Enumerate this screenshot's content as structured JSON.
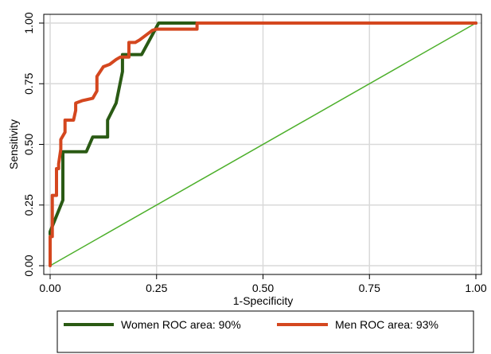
{
  "chart_data": {
    "type": "line",
    "xlabel": "1-Specificity",
    "ylabel": "Sensitivity",
    "xlim": [
      0,
      1
    ],
    "ylim": [
      0,
      1
    ],
    "x_ticks": [
      "0.00",
      "0.25",
      "0.50",
      "0.75",
      "1.00"
    ],
    "y_ticks": [
      "0.00",
      "0.25",
      "0.50",
      "0.75",
      "1.00"
    ],
    "grid": true,
    "legend_position": "bottom",
    "series": [
      {
        "name": "Women ROC area: 90%",
        "color": "#2a5a14",
        "x": [
          0,
          0,
          0.03,
          0.03,
          0.085,
          0.1,
          0.135,
          0.135,
          0.155,
          0.17,
          0.17,
          0.215,
          0.255,
          1.0
        ],
        "y": [
          0.13,
          0.14,
          0.27,
          0.47,
          0.47,
          0.53,
          0.53,
          0.6,
          0.67,
          0.8,
          0.87,
          0.87,
          1.0,
          1.0
        ]
      },
      {
        "name": "Men ROC area: 93%",
        "color": "#d4471f",
        "x": [
          0,
          0,
          0.005,
          0.005,
          0.015,
          0.015,
          0.02,
          0.02,
          0.025,
          0.025,
          0.035,
          0.035,
          0.045,
          0.055,
          0.06,
          0.06,
          0.075,
          0.1,
          0.11,
          0.11,
          0.125,
          0.14,
          0.155,
          0.165,
          0.185,
          0.185,
          0.2,
          0.21,
          0.24,
          0.25,
          0.345,
          0.345,
          1.0
        ],
        "y": [
          0.0,
          0.12,
          0.12,
          0.29,
          0.29,
          0.4,
          0.4,
          0.42,
          0.48,
          0.52,
          0.55,
          0.6,
          0.6,
          0.6,
          0.64,
          0.67,
          0.68,
          0.69,
          0.72,
          0.78,
          0.82,
          0.83,
          0.85,
          0.86,
          0.86,
          0.92,
          0.92,
          0.93,
          0.97,
          0.975,
          0.975,
          1.0,
          1.0
        ]
      },
      {
        "name": "",
        "color": "#4caf2a",
        "x": [
          0,
          1
        ],
        "y": [
          0,
          1
        ]
      }
    ]
  }
}
